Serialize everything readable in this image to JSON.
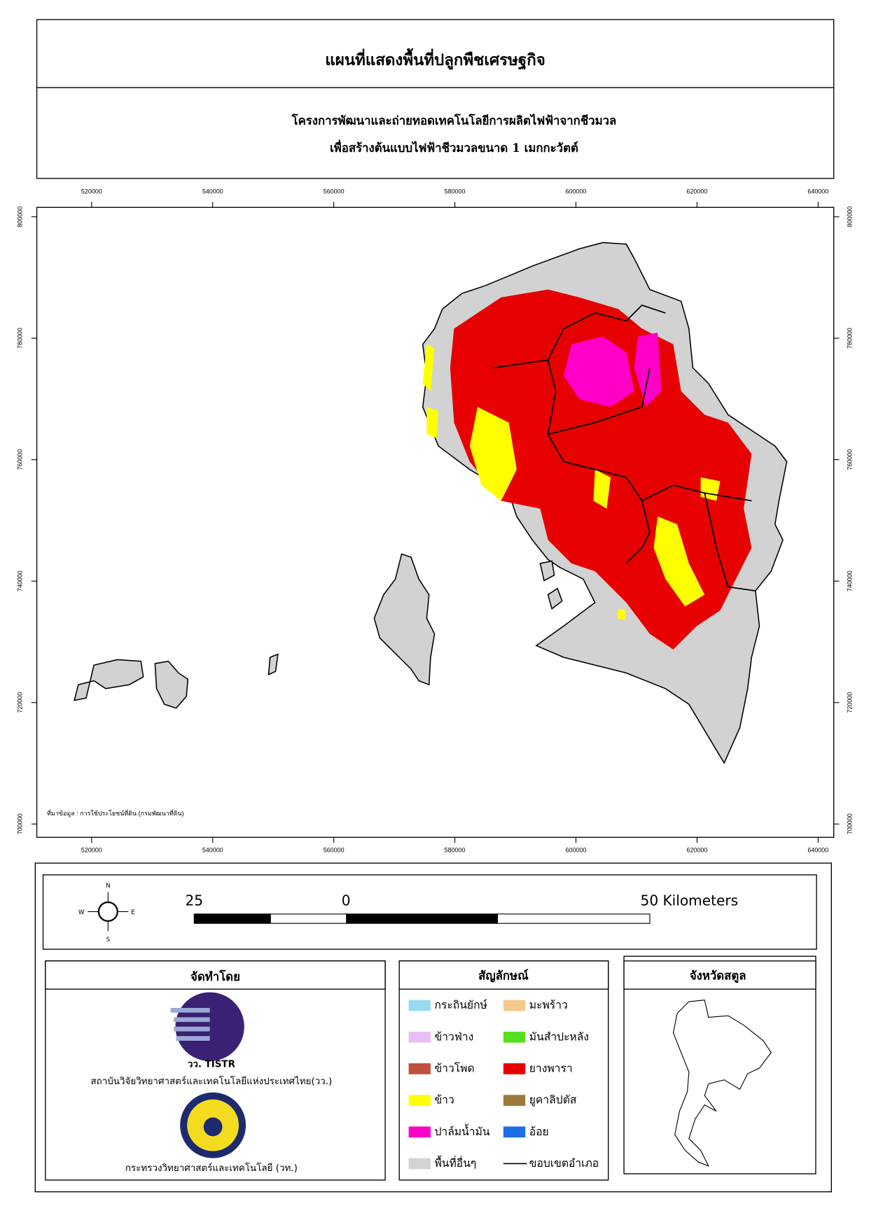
{
  "header": {
    "title": "แผนที่แสดงพื้นที่ปลูกพืชเศรษฐกิจ",
    "subtitle_lines": [
      "โครงการพัฒนาและถ่ายทอดเทคโนโลยีการผลิตไฟฟ้าจากชีวมวล",
      "เพื่อสร้างต้นแบบไฟฟ้าชีวมวลขนาด 1 เมกกะวัตต์"
    ]
  },
  "map": {
    "x_ticks": [
      520000,
      540000,
      560000,
      580000,
      600000,
      620000,
      640000
    ],
    "y_ticks": [
      700000,
      720000,
      740000,
      760000,
      780000,
      800000
    ],
    "source_note": "ที่มาข้อมูล : การใช้ประโยชน์ที่ดิน  (กรมพัฒนาที่ดิน)"
  },
  "compass": {
    "n": "N",
    "s": "S",
    "e": "E",
    "w": "W"
  },
  "scale_bar": {
    "labels": [
      "25",
      "0",
      "50 Kilometers"
    ]
  },
  "made_by": {
    "title": "จัดทำโดย",
    "logo_text": "วว. TISTR",
    "org1": "สถาบันวิจัยวิทยาศาสตร์และเทคโนโลยีแห่งประเทศไทย(วว.)",
    "org2": "กระทรวงวิทยาศาสตร์และเทคโนโลยี (วท.)"
  },
  "legend": {
    "title": "สัญลักษณ์",
    "items": [
      {
        "label": "กระถินยักษ์",
        "color": "#97dbf2"
      },
      {
        "label": "ข้าวฟ่าง",
        "color": "#e8bef5"
      },
      {
        "label": "ข้าวโพด",
        "color": "#c0503a"
      },
      {
        "label": "ข้าว",
        "color": "#ffff00"
      },
      {
        "label": "ปาล์มน้ำมัน",
        "color": "#ff00c8"
      },
      {
        "label": "พื้นที่อื่นๆ",
        "color": "#d3d3d3"
      },
      {
        "label": "มะพร้าว",
        "color": "#f5c98a"
      },
      {
        "label": "มันสำปะหลัง",
        "color": "#55e01e"
      },
      {
        "label": "ยางพารา",
        "color": "#e60000"
      },
      {
        "label": "ยูคาลิปตัส",
        "color": "#9c7a3c"
      },
      {
        "label": "อ้อย",
        "color": "#1a6ee6"
      },
      {
        "label": "ขอบเขตอำเภอ",
        "color": "#000000",
        "symbol": "line"
      }
    ]
  },
  "inset": {
    "title": "จังหวัดสตูล"
  }
}
